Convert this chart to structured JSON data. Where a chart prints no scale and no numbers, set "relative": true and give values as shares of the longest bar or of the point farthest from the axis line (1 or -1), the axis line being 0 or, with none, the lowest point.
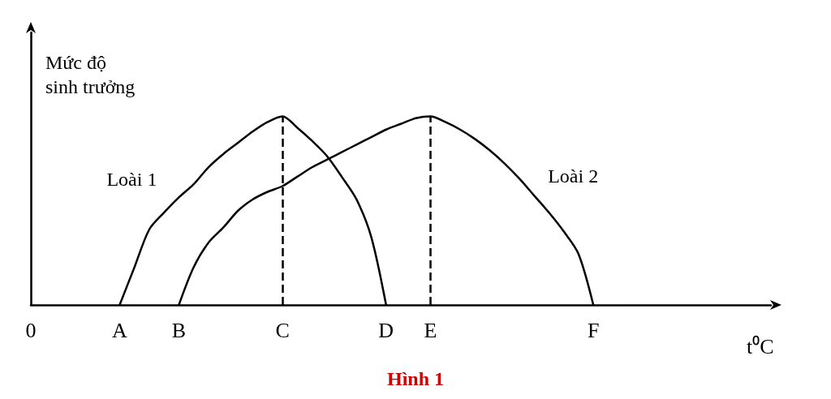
{
  "chart_data": {
    "type": "line",
    "title": "Hình 1",
    "xlabel": "t⁰C",
    "ylabel": "Mức độ\nsinh trưởng",
    "relative": true,
    "categories": [
      "0",
      null,
      null,
      null,
      null,
      null,
      "A",
      null,
      null,
      null,
      "B",
      null,
      null,
      null,
      null,
      null,
      null,
      "C",
      null,
      null,
      null,
      null,
      null,
      null,
      "D",
      null,
      null,
      "E",
      null,
      null,
      null,
      null,
      null,
      null,
      null,
      null,
      null,
      null,
      "F",
      null,
      null,
      null,
      null,
      null,
      null,
      null,
      null,
      null,
      null,
      null,
      null
    ],
    "series": [
      {
        "name": "Loài 1",
        "color": "#000000",
        "values": [
          null,
          null,
          null,
          null,
          null,
          null,
          0,
          0.2,
          0.4,
          0.49,
          0.57,
          0.64,
          0.73,
          0.8,
          0.86,
          0.92,
          0.97,
          1,
          0.94,
          0.87,
          0.79,
          0.68,
          0.56,
          0.36,
          0,
          null,
          null,
          null,
          null,
          null,
          null,
          null,
          null,
          null,
          null,
          null,
          null,
          null,
          null,
          null,
          null,
          null,
          null,
          null,
          null,
          null,
          null,
          null,
          null,
          null,
          null
        ]
      },
      {
        "name": "Loài 2",
        "color": "#000000",
        "values": [
          null,
          null,
          null,
          null,
          null,
          null,
          null,
          null,
          null,
          null,
          0,
          0.2,
          0.33,
          0.41,
          0.5,
          0.56,
          0.6,
          0.63,
          0.68,
          0.73,
          0.77,
          0.81,
          0.85,
          0.89,
          0.93,
          0.96,
          0.99,
          1,
          0.97,
          0.93,
          0.88,
          0.82,
          0.75,
          0.67,
          0.58,
          0.49,
          0.39,
          0.27,
          0,
          null,
          null,
          null,
          null,
          null,
          null,
          null,
          null,
          null,
          null,
          null,
          null
        ]
      }
    ],
    "ref_lines": [
      {
        "axis": "x",
        "value": "C",
        "line_style": "dashed",
        "color": "#000000"
      },
      {
        "axis": "x",
        "value": "E",
        "line_style": "dashed",
        "color": "#000000"
      }
    ],
    "grid": false,
    "legend": false,
    "marker": "none",
    "line_style": "solid"
  }
}
